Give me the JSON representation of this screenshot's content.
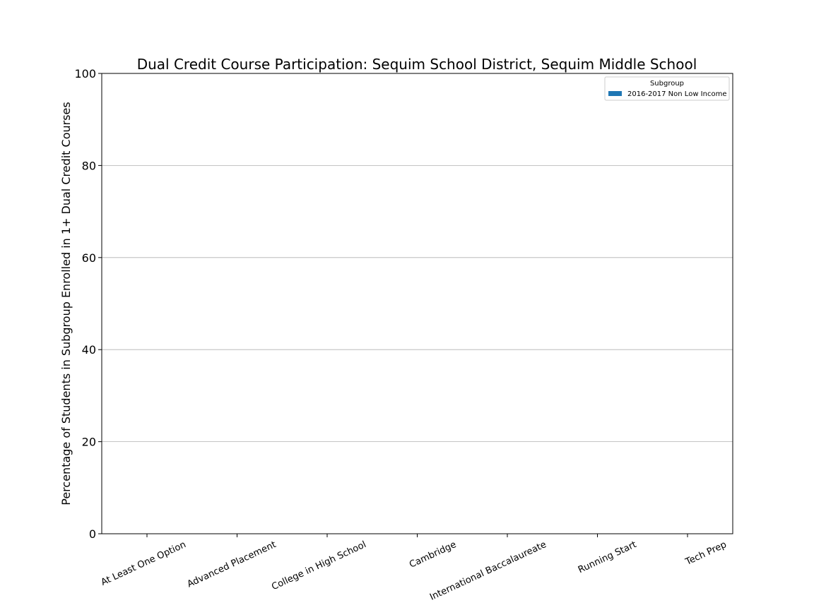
{
  "chart_data": {
    "type": "bar",
    "title": "Dual Credit Course Participation: Sequim School District, Sequim Middle School",
    "xlabel": "",
    "ylabel": "Percentage of Students in Subgroup Enrolled in 1+ Dual Credit Courses",
    "ylim": [
      0,
      100
    ],
    "yticks": [
      "0",
      "20",
      "40",
      "60",
      "80",
      "100"
    ],
    "grid": "y",
    "categories": [
      "At Least One Option",
      "Advanced Placement",
      "College in High School",
      "Cambridge",
      "International Baccalaureate",
      "Running Start",
      "Tech Prep"
    ],
    "series": [
      {
        "name": "2016-2017 Non Low Income",
        "color": "#1f77b4",
        "values": [
          0,
          0,
          0,
          0,
          0,
          0,
          0
        ]
      }
    ],
    "legend": {
      "title": "Subgroup",
      "placement": "top-right"
    }
  }
}
